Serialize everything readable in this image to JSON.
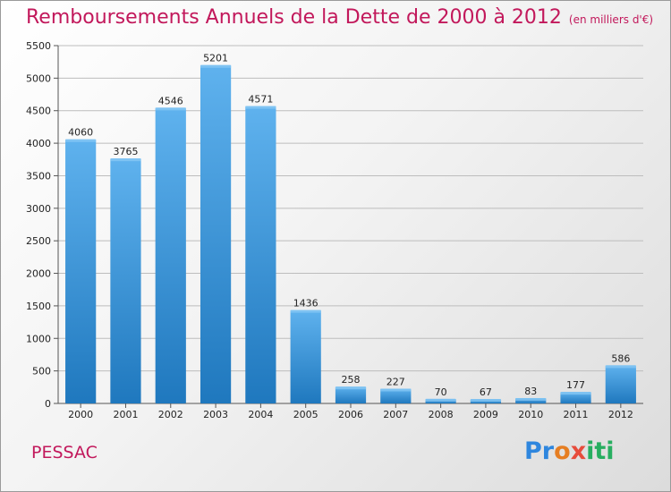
{
  "title": "Remboursements Annuels de la Dette de 2000 à 2012",
  "unit": "(en milliers d'€)",
  "commune": "PESSAC",
  "logo": {
    "text": "Proxiti",
    "letters": [
      {
        "ch": "P",
        "color": "#2e86de"
      },
      {
        "ch": "r",
        "color": "#2e86de"
      },
      {
        "ch": "o",
        "color": "#e67e22"
      },
      {
        "ch": "x",
        "color": "#e74c3c"
      },
      {
        "ch": "i",
        "color": "#27ae60"
      },
      {
        "ch": "t",
        "color": "#27ae60"
      },
      {
        "ch": "i",
        "color": "#27ae60"
      }
    ]
  },
  "colors": {
    "title": "#c2185b",
    "bar_top": "#5fb2ee",
    "bar_bottom": "#1f78be",
    "grid": "#bdbdbd",
    "axis": "#555555"
  },
  "chart_data": {
    "type": "bar",
    "categories": [
      "2000",
      "2001",
      "2002",
      "2003",
      "2004",
      "2005",
      "2006",
      "2007",
      "2008",
      "2009",
      "2010",
      "2011",
      "2012"
    ],
    "values": [
      4060,
      3765,
      4546,
      5201,
      4571,
      1436,
      258,
      227,
      70,
      67,
      83,
      177,
      586
    ],
    "value_labels": [
      "4060",
      "3765",
      "4546",
      "5201",
      "4571",
      "1436",
      "258",
      "227",
      "70",
      "67",
      "83",
      "177",
      "586"
    ],
    "yticks": [
      0,
      500,
      1000,
      1500,
      2000,
      2500,
      3000,
      3500,
      4000,
      4500,
      5000,
      5500
    ],
    "ytick_labels": [
      "0",
      "500",
      "1000",
      "1500",
      "2000",
      "2500",
      "3000",
      "3500",
      "4000",
      "4500",
      "5000",
      "5500"
    ],
    "ylim": [
      0,
      5500
    ],
    "grid": true
  }
}
